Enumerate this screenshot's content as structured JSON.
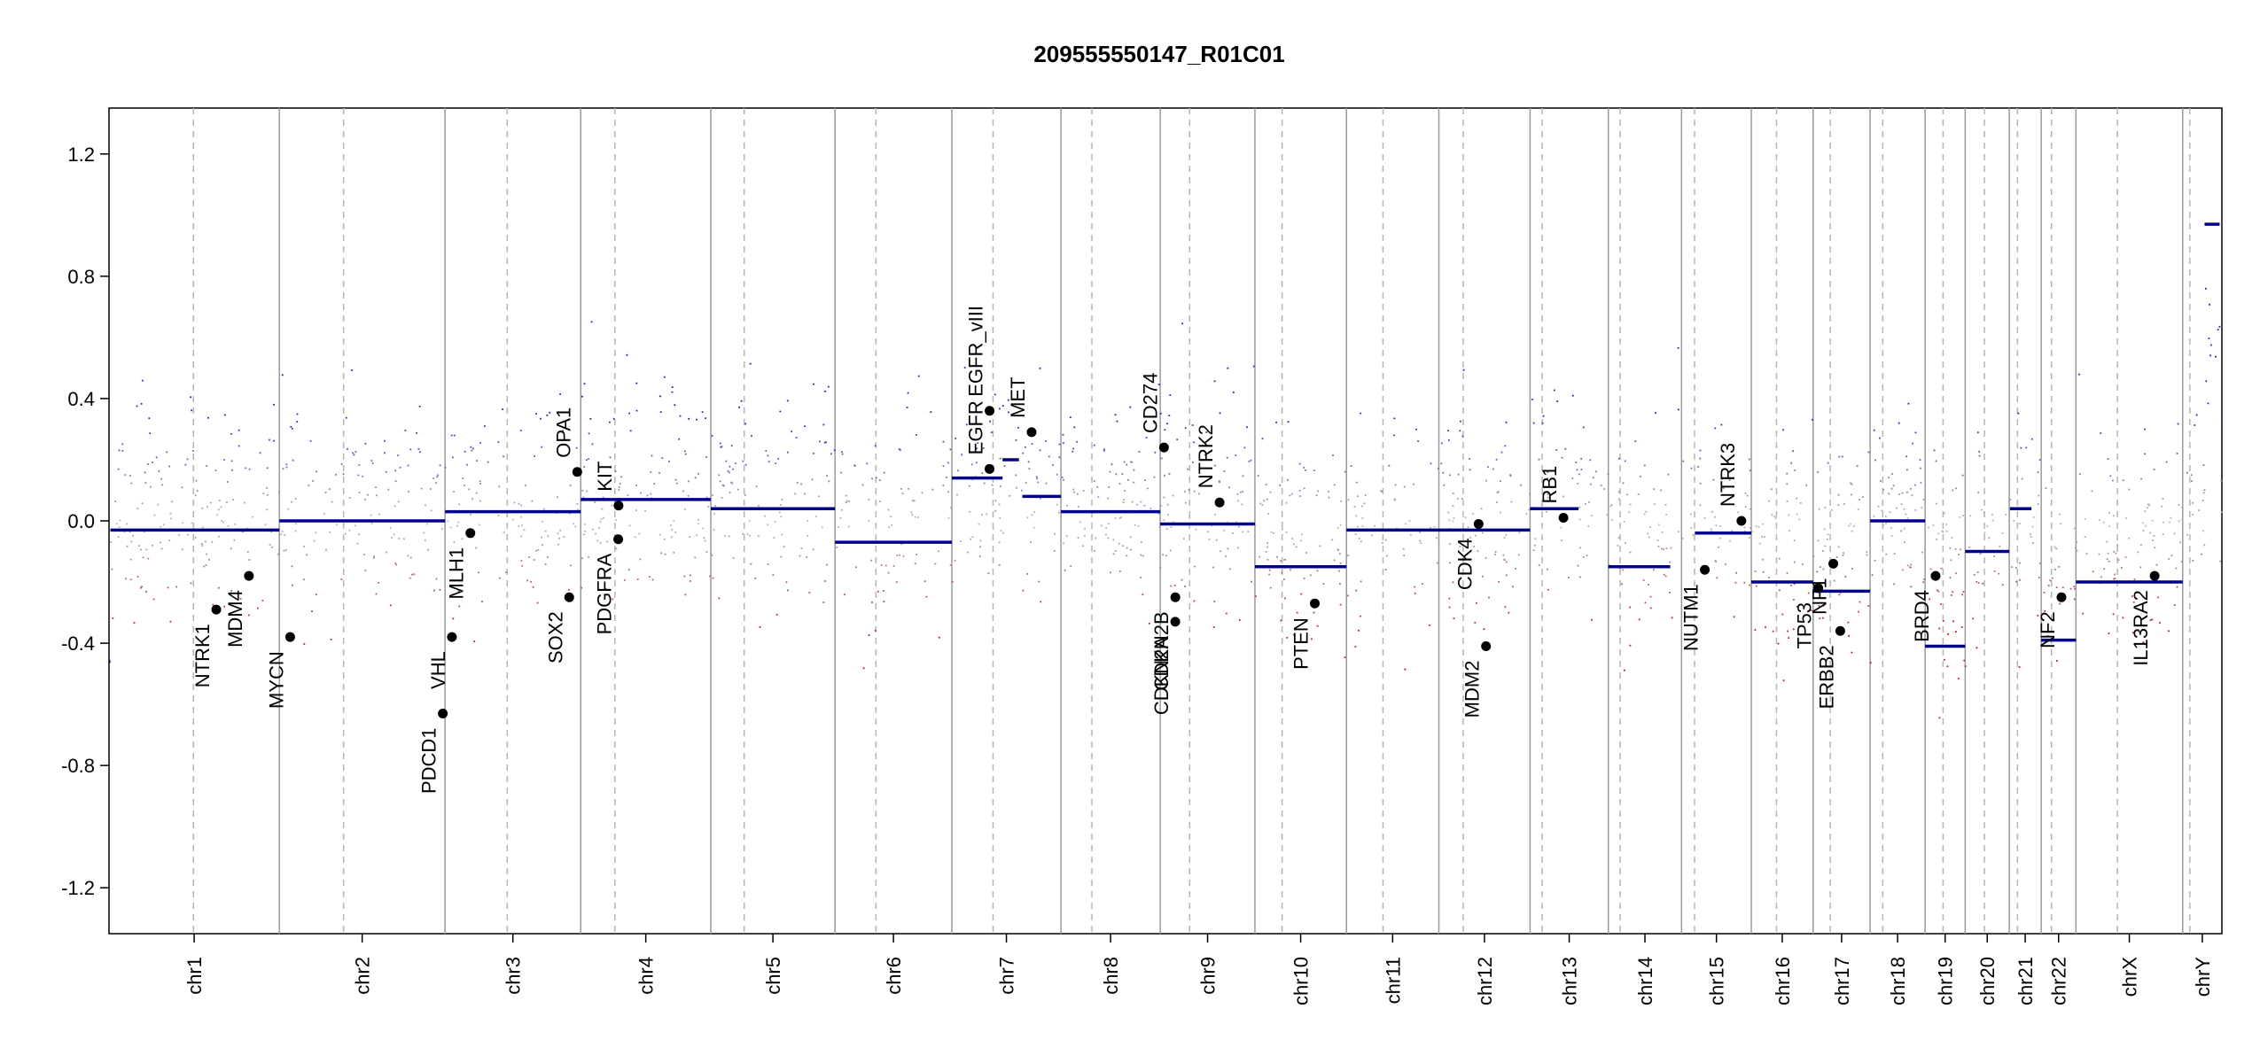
{
  "chart_data": {
    "type": "scatter",
    "title": "209555550147_R01C01",
    "xlabel": "",
    "ylabel": "",
    "ylim": [
      -1.35,
      1.35
    ],
    "yticks": [
      -1.2,
      -0.8,
      -0.4,
      0.0,
      0.4,
      0.8,
      1.2
    ],
    "ytick_labels": [
      "-1.2",
      "-0.8",
      "-0.4",
      "0.0",
      "0.4",
      "0.8",
      "1.2"
    ],
    "colors": {
      "gain": "#1f2bb0",
      "loss": "#b22222",
      "neutral": "#b8b8b8",
      "segment": "#00008b",
      "gene": "#000000",
      "boundary": "#9a9a9a",
      "centromere": "#b5b5b5"
    },
    "chromosomes": [
      {
        "name": "chr1",
        "start": 0.0,
        "end": 248.95,
        "centromere": 123.4
      },
      {
        "name": "chr2",
        "start": 248.95,
        "end": 491.15,
        "centromere": 93.9
      },
      {
        "name": "chr3",
        "start": 491.15,
        "end": 689.45,
        "centromere": 90.9
      },
      {
        "name": "chr4",
        "start": 689.45,
        "end": 879.66,
        "centromere": 50.0
      },
      {
        "name": "chr5",
        "start": 879.66,
        "end": 1061.2,
        "centromere": 48.8
      },
      {
        "name": "chr6",
        "start": 1061.2,
        "end": 1232.0,
        "centromere": 59.8
      },
      {
        "name": "chr7",
        "start": 1232.0,
        "end": 1391.4,
        "centromere": 60.1
      },
      {
        "name": "chr8",
        "start": 1391.4,
        "end": 1536.5,
        "centromere": 45.2
      },
      {
        "name": "chr9",
        "start": 1536.5,
        "end": 1674.9,
        "centromere": 43.0
      },
      {
        "name": "chr10",
        "start": 1674.9,
        "end": 1808.7,
        "centromere": 39.8
      },
      {
        "name": "chr11",
        "start": 1808.7,
        "end": 1943.8,
        "centromere": 53.4
      },
      {
        "name": "chr12",
        "start": 1943.8,
        "end": 2077.1,
        "centromere": 35.5
      },
      {
        "name": "chr13",
        "start": 2077.1,
        "end": 2191.5,
        "centromere": 17.7
      },
      {
        "name": "chr14",
        "start": 2191.5,
        "end": 2298.5,
        "centromere": 17.2
      },
      {
        "name": "chr15",
        "start": 2298.5,
        "end": 2400.5,
        "centromere": 19.0
      },
      {
        "name": "chr16",
        "start": 2400.5,
        "end": 2490.8,
        "centromere": 36.8
      },
      {
        "name": "chr17",
        "start": 2490.8,
        "end": 2574.1,
        "centromere": 25.1
      },
      {
        "name": "chr18",
        "start": 2574.1,
        "end": 2654.5,
        "centromere": 18.5
      },
      {
        "name": "chr19",
        "start": 2654.5,
        "end": 2713.1,
        "centromere": 26.2
      },
      {
        "name": "chr20",
        "start": 2713.1,
        "end": 2777.5,
        "centromere": 28.1
      },
      {
        "name": "chr21",
        "start": 2777.5,
        "end": 2824.2,
        "centromere": 12.0
      },
      {
        "name": "chr22",
        "start": 2824.2,
        "end": 2875.0,
        "centromere": 15.0
      },
      {
        "name": "chrX",
        "start": 2875.0,
        "end": 3031.0,
        "centromere": 60.6
      },
      {
        "name": "chrY",
        "start": 3031.0,
        "end": 3088.3,
        "centromere": 10.4
      }
    ],
    "segments": [
      {
        "x0": 0.0,
        "x1": 2.0,
        "y": -0.46
      },
      {
        "x0": 2.0,
        "x1": 248.95,
        "y": -0.03
      },
      {
        "x0": 248.95,
        "x1": 491.15,
        "y": 0.0
      },
      {
        "x0": 491.15,
        "x1": 689.45,
        "y": 0.03
      },
      {
        "x0": 689.45,
        "x1": 879.66,
        "y": 0.07
      },
      {
        "x0": 879.66,
        "x1": 1061.2,
        "y": 0.04
      },
      {
        "x0": 1061.2,
        "x1": 1232.0,
        "y": -0.07
      },
      {
        "x0": 1232.0,
        "x1": 1306.0,
        "y": 0.14
      },
      {
        "x0": 1306.0,
        "x1": 1330.0,
        "y": 0.2
      },
      {
        "x0": 1335.0,
        "x1": 1391.4,
        "y": 0.08
      },
      {
        "x0": 1391.4,
        "x1": 1536.5,
        "y": 0.03
      },
      {
        "x0": 1536.5,
        "x1": 1674.9,
        "y": -0.01
      },
      {
        "x0": 1674.9,
        "x1": 1808.7,
        "y": -0.15
      },
      {
        "x0": 1808.7,
        "x1": 2077.1,
        "y": -0.03
      },
      {
        "x0": 2077.1,
        "x1": 2148.0,
        "y": 0.04
      },
      {
        "x0": 2191.5,
        "x1": 2282.0,
        "y": -0.15
      },
      {
        "x0": 2318.0,
        "x1": 2400.5,
        "y": -0.04
      },
      {
        "x0": 2400.5,
        "x1": 2490.8,
        "y": -0.2
      },
      {
        "x0": 2490.8,
        "x1": 2574.1,
        "y": -0.23
      },
      {
        "x0": 2574.1,
        "x1": 2654.5,
        "y": 0.0
      },
      {
        "x0": 2654.5,
        "x1": 2713.1,
        "y": -0.41
      },
      {
        "x0": 2713.1,
        "x1": 2777.5,
        "y": -0.1
      },
      {
        "x0": 2778.5,
        "x1": 2810.0,
        "y": 0.04
      },
      {
        "x0": 2824.2,
        "x1": 2875.0,
        "y": -0.39
      },
      {
        "x0": 2875.0,
        "x1": 3031.0,
        "y": -0.2
      },
      {
        "x0": 3063.0,
        "x1": 3085.0,
        "y": 0.97
      }
    ],
    "genes": [
      {
        "name": "NTRK1",
        "x": 156.8,
        "y": -0.29
      },
      {
        "name": "MDM4",
        "x": 204.5,
        "y": -0.18
      },
      {
        "name": "MYCN",
        "x": 264.8,
        "y": -0.38
      },
      {
        "name": "VHL",
        "x": 501.2,
        "y": -0.38
      },
      {
        "name": "PDCD1",
        "x": 487.9,
        "y": -0.63
      },
      {
        "name": "MLH1",
        "x": 528.2,
        "y": -0.04
      },
      {
        "name": "SOX2",
        "x": 672.7,
        "y": -0.25
      },
      {
        "name": "OPA1",
        "x": 684.4,
        "y": 0.16
      },
      {
        "name": "KIT",
        "x": 744.7,
        "y": 0.05
      },
      {
        "name": "PDGFRA",
        "x": 744.3,
        "y": -0.06
      },
      {
        "name": "EGFR",
        "x": 1287.0,
        "y": 0.17
      },
      {
        "name": "EGFR_vIII",
        "x": 1287.1,
        "y": 0.36
      },
      {
        "name": "MET",
        "x": 1348.5,
        "y": 0.29
      },
      {
        "name": "CD274",
        "x": 1542.0,
        "y": 0.24
      },
      {
        "name": "CDKN2A",
        "x": 1558.5,
        "y": -0.33
      },
      {
        "name": "CDKN2B",
        "x": 1558.6,
        "y": -0.25
      },
      {
        "name": "NTRK2",
        "x": 1623.3,
        "y": 0.06
      },
      {
        "name": "PTEN",
        "x": 1762.4,
        "y": -0.27
      },
      {
        "name": "CDK4",
        "x": 2001.9,
        "y": -0.01
      },
      {
        "name": "MDM2",
        "x": 2012.7,
        "y": -0.41
      },
      {
        "name": "RB1",
        "x": 2125.9,
        "y": 0.01
      },
      {
        "name": "NUTM1",
        "x": 2332.5,
        "y": -0.16
      },
      {
        "name": "NTRK3",
        "x": 2386.0,
        "y": 0.0
      },
      {
        "name": "TP53",
        "x": 2498.3,
        "y": -0.22
      },
      {
        "name": "NF1",
        "x": 2520.3,
        "y": -0.14
      },
      {
        "name": "ERBB2",
        "x": 2530.5,
        "y": -0.36
      },
      {
        "name": "BRD4",
        "x": 2669.8,
        "y": -0.18
      },
      {
        "name": "NF2",
        "x": 2853.8,
        "y": -0.25
      },
      {
        "name": "IL13RA2",
        "x": 2990.0,
        "y": -0.18
      }
    ]
  }
}
